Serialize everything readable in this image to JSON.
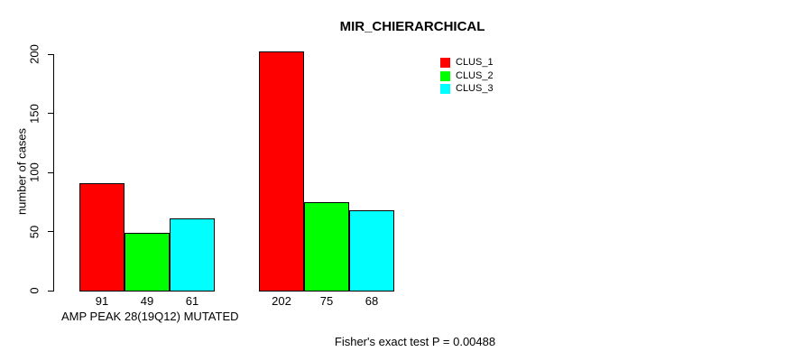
{
  "chart_data": {
    "type": "bar",
    "title": "MIR_CHIERARCHICAL",
    "ylabel": "number of cases",
    "xlabel": "AMP PEAK 28(19Q12) MUTATED",
    "footnote": "Fisher's exact test P = 0.00488",
    "yticks": [
      0,
      50,
      100,
      150,
      200
    ],
    "ylim": [
      0,
      200
    ],
    "grid": false,
    "legend_position": "top-right",
    "groups": 2,
    "series": [
      {
        "name": "CLUS_1",
        "color": "#ff0000",
        "values": [
          91,
          202
        ]
      },
      {
        "name": "CLUS_2",
        "color": "#00ff00",
        "values": [
          49,
          75
        ]
      },
      {
        "name": "CLUS_3",
        "color": "#00ffff",
        "values": [
          61,
          68
        ]
      }
    ]
  }
}
